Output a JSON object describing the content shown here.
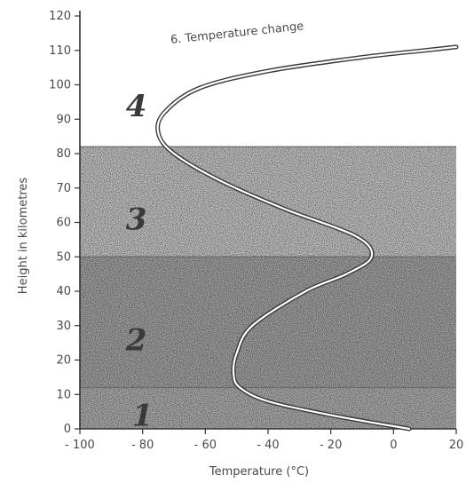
{
  "chart_data": {
    "type": "line",
    "title": "",
    "xlabel": "Temperature (°C)",
    "ylabel": "Height in kilometres",
    "xlim": [
      -100,
      20
    ],
    "ylim": [
      0,
      120
    ],
    "x_ticks": [
      "- 100",
      "- 80",
      "- 60",
      "- 40",
      "- 20",
      "0",
      "20"
    ],
    "x_tick_values": [
      -100,
      -80,
      -60,
      -40,
      -20,
      0,
      20
    ],
    "y_ticks": [
      "0",
      "10",
      "20",
      "30",
      "40",
      "50",
      "60",
      "70",
      "80",
      "90",
      "100",
      "110",
      "120"
    ],
    "y_tick_values": [
      0,
      10,
      20,
      30,
      40,
      50,
      60,
      70,
      80,
      90,
      100,
      110,
      120
    ],
    "series": [
      {
        "name": "6. Temperature change",
        "points": [
          [
            5,
            0
          ],
          [
            -20,
            4
          ],
          [
            -40,
            8
          ],
          [
            -49,
            12
          ],
          [
            -51,
            16
          ],
          [
            -50,
            22
          ],
          [
            -45,
            30
          ],
          [
            -28,
            40
          ],
          [
            -15,
            45
          ],
          [
            -7,
            50
          ],
          [
            -12,
            56
          ],
          [
            -35,
            64
          ],
          [
            -55,
            72
          ],
          [
            -70,
            80
          ],
          [
            -75,
            86
          ],
          [
            -73,
            92
          ],
          [
            -62,
            99
          ],
          [
            -40,
            104
          ],
          [
            -10,
            108
          ],
          [
            10,
            110
          ],
          [
            20,
            111
          ]
        ]
      }
    ],
    "layers": [
      {
        "label": "1",
        "y_range": [
          0,
          12
        ],
        "shade": "#c2c2c2"
      },
      {
        "label": "2",
        "y_range": [
          12,
          50
        ],
        "shade": "#b6b6b6"
      },
      {
        "label": "3",
        "y_range": [
          50,
          82
        ],
        "shade": "#dcdcdc"
      },
      {
        "label": "4",
        "y_range": [
          82,
          120
        ],
        "shade": "#ffffff"
      }
    ],
    "grid": false,
    "legend": "none"
  }
}
